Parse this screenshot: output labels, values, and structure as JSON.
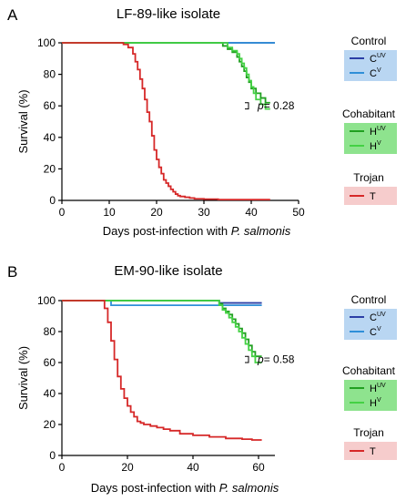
{
  "chart_data": [
    {
      "type": "line",
      "step": true,
      "panel_label": "A",
      "title": "LF-89-like isolate",
      "xlabel_prefix": "Days post-infection with ",
      "xlabel_italic": "P. salmonis",
      "ylabel": "Survival (%)",
      "xlim": [
        0,
        50
      ],
      "ylim": [
        0,
        100
      ],
      "xticks": [
        0,
        10,
        20,
        30,
        40,
        50
      ],
      "yticks": [
        0,
        20,
        40,
        60,
        80,
        100
      ],
      "grid": false,
      "series": [
        {
          "name": "C<sup>UV</sup>",
          "color": "#2b3fa6",
          "x": [
            0,
            45
          ],
          "y": [
            100,
            100
          ]
        },
        {
          "name": "C<sup>V</sup>",
          "color": "#2f8fd8",
          "x": [
            0,
            45
          ],
          "y": [
            100,
            100
          ]
        },
        {
          "name": "H<sup>UV</sup>",
          "color": "#21a021",
          "x": [
            0,
            33,
            34,
            35,
            36,
            37,
            37.5,
            38,
            38.5,
            39,
            39.5,
            40,
            41,
            42,
            43,
            44
          ],
          "y": [
            100,
            100,
            98,
            96,
            94,
            91,
            88,
            85,
            82,
            78,
            75,
            71,
            68,
            65,
            62,
            62
          ]
        },
        {
          "name": "H<sup>V</sup>",
          "color": "#44d144",
          "x": [
            0,
            34,
            35,
            36,
            37,
            37.5,
            38,
            38.5,
            39,
            39.5,
            40,
            40.5,
            41,
            42,
            43,
            44
          ],
          "y": [
            100,
            100,
            97,
            95,
            93,
            90,
            87,
            84,
            80,
            76,
            72,
            68,
            64,
            61,
            58,
            58
          ]
        },
        {
          "name": "T",
          "color": "#d62828",
          "x": [
            0,
            7,
            13,
            14,
            15,
            15.5,
            16,
            16.5,
            17,
            17.5,
            18,
            18.5,
            19,
            19.5,
            20,
            20.5,
            21,
            21.5,
            22,
            22.5,
            23,
            23.5,
            24,
            24.5,
            25,
            26,
            27,
            28,
            30,
            33,
            44
          ],
          "y": [
            100,
            100,
            99,
            97,
            93,
            88,
            83,
            77,
            71,
            64,
            56,
            50,
            41,
            32,
            26,
            21,
            17,
            13,
            11,
            9,
            7,
            5.5,
            4,
            3,
            2.5,
            2,
            1.5,
            1,
            0.8,
            0.5,
            0.5
          ]
        }
      ],
      "annotation": "p= 0.28",
      "legend": {
        "placement": "right",
        "groups": [
          {
            "title": "Control",
            "bg": "#b9d6f2",
            "items": [
              {
                "label": "C",
                "sup": "UV",
                "color": "#2b3fa6"
              },
              {
                "label": "C",
                "sup": "V",
                "color": "#2f8fd8"
              }
            ]
          },
          {
            "title": "Cohabitant",
            "bg": "#8ee38e",
            "items": [
              {
                "label": "H",
                "sup": "UV",
                "color": "#21a021"
              },
              {
                "label": "H",
                "sup": "V",
                "color": "#44d144"
              }
            ]
          },
          {
            "title": "Trojan",
            "bg": "#f6cccc",
            "items": [
              {
                "label": "T",
                "sup": "",
                "color": "#d62828"
              }
            ]
          }
        ]
      }
    },
    {
      "type": "line",
      "step": true,
      "panel_label": "B",
      "title": "EM-90-like isolate",
      "xlabel_prefix": "Days post-infection with ",
      "xlabel_italic": "P. salmonis",
      "ylabel": "Survival (%)",
      "xlim": [
        0,
        65
      ],
      "ylim": [
        0,
        100
      ],
      "xticks": [
        0,
        20,
        40,
        60
      ],
      "yticks": [
        0,
        20,
        40,
        60,
        80,
        100
      ],
      "grid": false,
      "series": [
        {
          "name": "C<sup>UV</sup>",
          "color": "#2b3fa6",
          "x": [
            0,
            47,
            48,
            61
          ],
          "y": [
            100,
            100,
            98.5,
            98.5
          ]
        },
        {
          "name": "C<sup>V</sup>",
          "color": "#2f8fd8",
          "x": [
            0,
            15,
            61
          ],
          "y": [
            100,
            97,
            97
          ]
        },
        {
          "name": "H<sup>UV</sup>",
          "color": "#21a021",
          "x": [
            0,
            47,
            48,
            49,
            50,
            51,
            52,
            53,
            54,
            55,
            56,
            57,
            58,
            59,
            61
          ],
          "y": [
            100,
            100,
            98,
            95,
            93,
            91,
            88,
            85,
            82,
            79,
            75,
            71,
            67,
            64,
            64
          ]
        },
        {
          "name": "H<sup>V</sup>",
          "color": "#44d144",
          "x": [
            0,
            47,
            48,
            49,
            50,
            51,
            52,
            53,
            54,
            55,
            56,
            57,
            58,
            59,
            61
          ],
          "y": [
            100,
            100,
            97,
            94,
            92,
            89,
            86,
            83,
            80,
            76,
            72,
            68,
            64,
            60,
            60
          ]
        },
        {
          "name": "T",
          "color": "#d62828",
          "x": [
            0,
            12,
            13,
            14,
            15,
            16,
            17,
            18,
            19,
            20,
            21,
            22,
            23,
            24,
            25,
            27,
            29,
            31,
            33,
            36,
            40,
            45,
            50,
            55,
            58,
            61
          ],
          "y": [
            100,
            100,
            95,
            86,
            74,
            62,
            51,
            43,
            37,
            32,
            28,
            25,
            22,
            21,
            20,
            19,
            18,
            17,
            16,
            14,
            13,
            12,
            11,
            10.5,
            10,
            10
          ]
        }
      ],
      "annotation": "p= 0.58",
      "legend": {
        "placement": "right",
        "groups": [
          {
            "title": "Control",
            "bg": "#b9d6f2",
            "items": [
              {
                "label": "C",
                "sup": "UV",
                "color": "#2b3fa6"
              },
              {
                "label": "C",
                "sup": "V",
                "color": "#2f8fd8"
              }
            ]
          },
          {
            "title": "Cohabitant",
            "bg": "#8ee38e",
            "items": [
              {
                "label": "H",
                "sup": "UV",
                "color": "#21a021"
              },
              {
                "label": "H",
                "sup": "V",
                "color": "#44d144"
              }
            ]
          },
          {
            "title": "Trojan",
            "bg": "#f6cccc",
            "items": [
              {
                "label": "T",
                "sup": "",
                "color": "#d62828"
              }
            ]
          }
        ]
      }
    }
  ]
}
